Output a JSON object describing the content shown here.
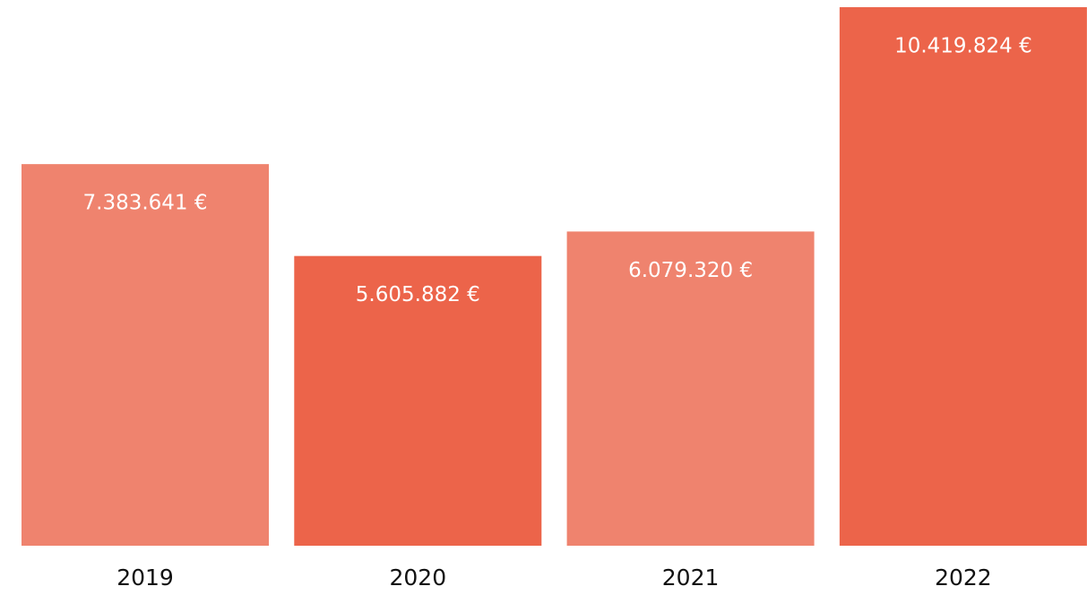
{
  "chart_data": {
    "type": "bar",
    "categories": [
      "2019",
      "2020",
      "2021",
      "2022"
    ],
    "values": [
      7383641,
      5605882,
      6079320,
      10419824
    ],
    "value_labels": [
      "7.383.641 €",
      "5.605.882 €",
      "6.079.320 €",
      "10.419.824 €"
    ],
    "colors": [
      "#ef836e",
      "#ec644a",
      "#ef836e",
      "#ec644a"
    ],
    "ylim": [
      0,
      10500000
    ]
  }
}
